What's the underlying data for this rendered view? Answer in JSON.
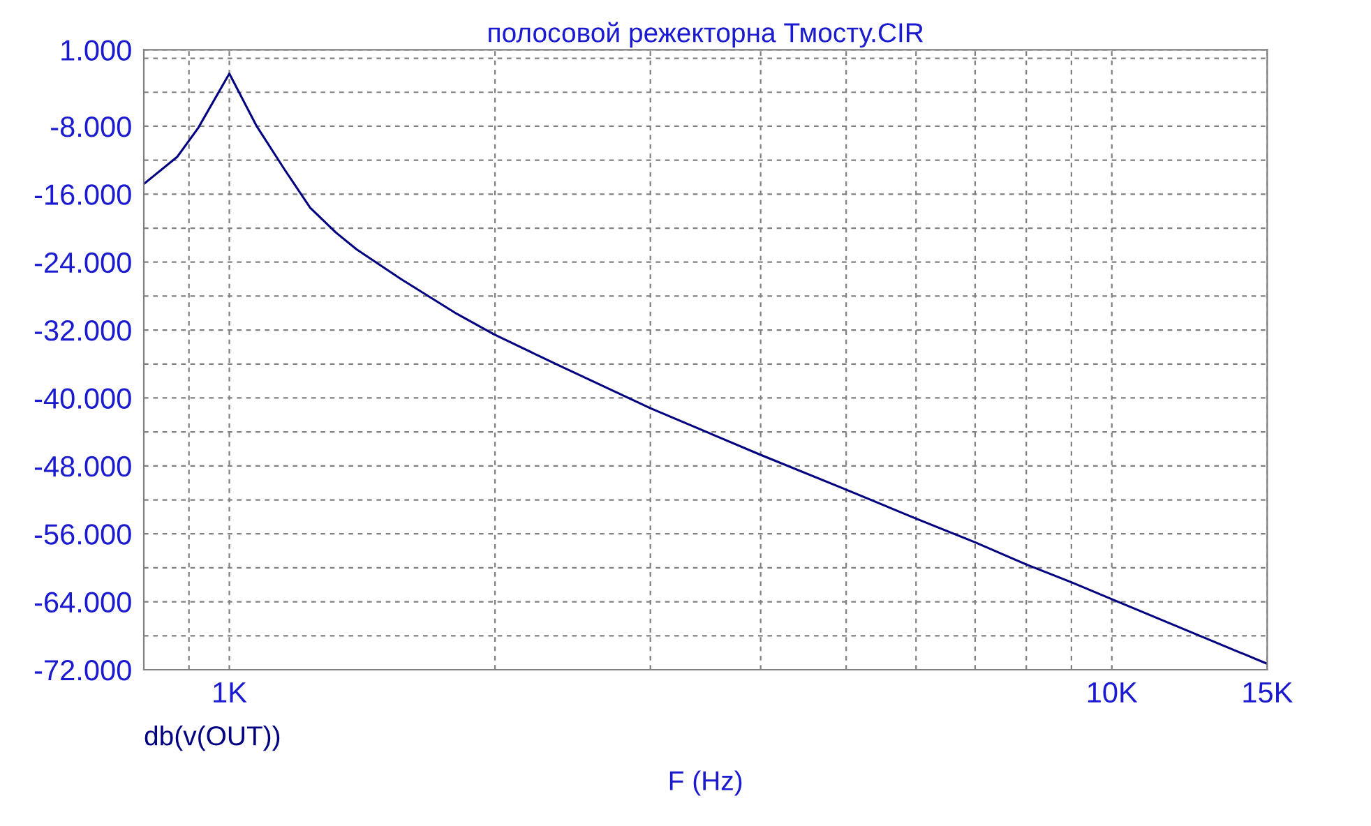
{
  "chart_data": {
    "type": "line",
    "title": "полосовой режекторна Тмосту.CIR",
    "xlabel": "F (Hz)",
    "log": "x",
    "grid": true,
    "legend": "bottom left",
    "marker": "none",
    "line_style": "solid",
    "xlim": [
      800,
      15000
    ],
    "xticks": [
      {
        "value": 900,
        "label": null
      },
      {
        "value": 1000,
        "label": "1K"
      },
      {
        "value": 2000,
        "label": null
      },
      {
        "value": 3000,
        "label": null
      },
      {
        "value": 4000,
        "label": null
      },
      {
        "value": 5000,
        "label": null
      },
      {
        "value": 6000,
        "label": null
      },
      {
        "value": 7000,
        "label": null
      },
      {
        "value": 8000,
        "label": null
      },
      {
        "value": 9000,
        "label": null
      },
      {
        "value": 10000,
        "label": "10K"
      },
      {
        "value": 15000,
        "label": "15K"
      }
    ],
    "ylim": [
      -72,
      1
    ],
    "yticks": [
      {
        "value": 1,
        "label": "1.000"
      },
      {
        "value": 0,
        "label": null
      },
      {
        "value": -4,
        "label": null
      },
      {
        "value": -8,
        "label": "-8.000"
      },
      {
        "value": -12,
        "label": null
      },
      {
        "value": -16,
        "label": "-16.000"
      },
      {
        "value": -20,
        "label": null
      },
      {
        "value": -24,
        "label": "-24.000"
      },
      {
        "value": -28,
        "label": null
      },
      {
        "value": -32,
        "label": "-32.000"
      },
      {
        "value": -36,
        "label": null
      },
      {
        "value": -40,
        "label": "-40.000"
      },
      {
        "value": -44,
        "label": null
      },
      {
        "value": -48,
        "label": "-48.000"
      },
      {
        "value": -52,
        "label": null
      },
      {
        "value": -56,
        "label": "-56.000"
      },
      {
        "value": -60,
        "label": null
      },
      {
        "value": -64,
        "label": "-64.000"
      },
      {
        "value": -68,
        "label": null
      },
      {
        "value": -72,
        "label": "-72.000"
      }
    ],
    "series": [
      {
        "name": "db(v(OUT))",
        "color": "#000080",
        "x": [
          800,
          873,
          922,
          1000,
          1074,
          1155,
          1235,
          1320,
          1394,
          1565,
          1811,
          1994,
          2366,
          3000,
          4000,
          5000,
          6000,
          7000,
          8000,
          9000,
          10000,
          15000
        ],
        "values": [
          -14.8,
          -11.6,
          -8.2,
          -1.8,
          -8.0,
          -13.1,
          -17.6,
          -20.5,
          -22.5,
          -26.0,
          -30.1,
          -32.5,
          -36.2,
          -41.2,
          -46.7,
          -50.8,
          -54.2,
          -57.0,
          -59.6,
          -61.7,
          -63.7,
          -71.3
        ]
      }
    ]
  }
}
